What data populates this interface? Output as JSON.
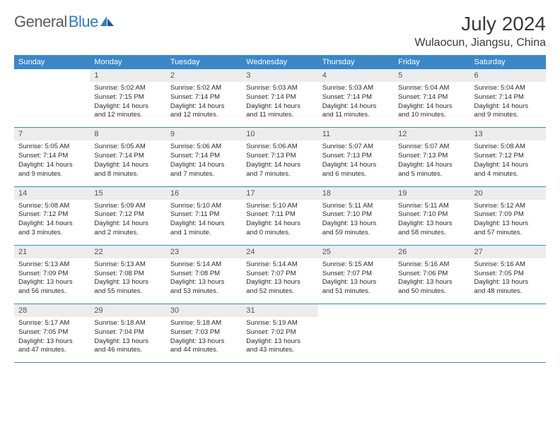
{
  "logo": {
    "part1": "General",
    "part2": "Blue"
  },
  "title": "July 2024",
  "location": "Wulaocun, Jiangsu, China",
  "colors": {
    "header_bg": "#3b87c8",
    "header_text": "#ffffff",
    "daynum_bg": "#ececec",
    "daynum_text": "#555555",
    "body_text": "#2a2a2a",
    "title_text": "#3a3a3a",
    "logo_gray": "#5a5a5a",
    "logo_blue": "#2f7bbf",
    "rule": "#3b87c8"
  },
  "weekdays": [
    "Sunday",
    "Monday",
    "Tuesday",
    "Wednesday",
    "Thursday",
    "Friday",
    "Saturday"
  ],
  "weeks": [
    [
      {
        "blank": true
      },
      {
        "n": "1",
        "sr": "Sunrise: 5:02 AM",
        "ss": "Sunset: 7:15 PM",
        "dl1": "Daylight: 14 hours",
        "dl2": "and 12 minutes."
      },
      {
        "n": "2",
        "sr": "Sunrise: 5:02 AM",
        "ss": "Sunset: 7:14 PM",
        "dl1": "Daylight: 14 hours",
        "dl2": "and 12 minutes."
      },
      {
        "n": "3",
        "sr": "Sunrise: 5:03 AM",
        "ss": "Sunset: 7:14 PM",
        "dl1": "Daylight: 14 hours",
        "dl2": "and 11 minutes."
      },
      {
        "n": "4",
        "sr": "Sunrise: 5:03 AM",
        "ss": "Sunset: 7:14 PM",
        "dl1": "Daylight: 14 hours",
        "dl2": "and 11 minutes."
      },
      {
        "n": "5",
        "sr": "Sunrise: 5:04 AM",
        "ss": "Sunset: 7:14 PM",
        "dl1": "Daylight: 14 hours",
        "dl2": "and 10 minutes."
      },
      {
        "n": "6",
        "sr": "Sunrise: 5:04 AM",
        "ss": "Sunset: 7:14 PM",
        "dl1": "Daylight: 14 hours",
        "dl2": "and 9 minutes."
      }
    ],
    [
      {
        "n": "7",
        "sr": "Sunrise: 5:05 AM",
        "ss": "Sunset: 7:14 PM",
        "dl1": "Daylight: 14 hours",
        "dl2": "and 9 minutes."
      },
      {
        "n": "8",
        "sr": "Sunrise: 5:05 AM",
        "ss": "Sunset: 7:14 PM",
        "dl1": "Daylight: 14 hours",
        "dl2": "and 8 minutes."
      },
      {
        "n": "9",
        "sr": "Sunrise: 5:06 AM",
        "ss": "Sunset: 7:14 PM",
        "dl1": "Daylight: 14 hours",
        "dl2": "and 7 minutes."
      },
      {
        "n": "10",
        "sr": "Sunrise: 5:06 AM",
        "ss": "Sunset: 7:13 PM",
        "dl1": "Daylight: 14 hours",
        "dl2": "and 7 minutes."
      },
      {
        "n": "11",
        "sr": "Sunrise: 5:07 AM",
        "ss": "Sunset: 7:13 PM",
        "dl1": "Daylight: 14 hours",
        "dl2": "and 6 minutes."
      },
      {
        "n": "12",
        "sr": "Sunrise: 5:07 AM",
        "ss": "Sunset: 7:13 PM",
        "dl1": "Daylight: 14 hours",
        "dl2": "and 5 minutes."
      },
      {
        "n": "13",
        "sr": "Sunrise: 5:08 AM",
        "ss": "Sunset: 7:12 PM",
        "dl1": "Daylight: 14 hours",
        "dl2": "and 4 minutes."
      }
    ],
    [
      {
        "n": "14",
        "sr": "Sunrise: 5:08 AM",
        "ss": "Sunset: 7:12 PM",
        "dl1": "Daylight: 14 hours",
        "dl2": "and 3 minutes."
      },
      {
        "n": "15",
        "sr": "Sunrise: 5:09 AM",
        "ss": "Sunset: 7:12 PM",
        "dl1": "Daylight: 14 hours",
        "dl2": "and 2 minutes."
      },
      {
        "n": "16",
        "sr": "Sunrise: 5:10 AM",
        "ss": "Sunset: 7:11 PM",
        "dl1": "Daylight: 14 hours",
        "dl2": "and 1 minute."
      },
      {
        "n": "17",
        "sr": "Sunrise: 5:10 AM",
        "ss": "Sunset: 7:11 PM",
        "dl1": "Daylight: 14 hours",
        "dl2": "and 0 minutes."
      },
      {
        "n": "18",
        "sr": "Sunrise: 5:11 AM",
        "ss": "Sunset: 7:10 PM",
        "dl1": "Daylight: 13 hours",
        "dl2": "and 59 minutes."
      },
      {
        "n": "19",
        "sr": "Sunrise: 5:11 AM",
        "ss": "Sunset: 7:10 PM",
        "dl1": "Daylight: 13 hours",
        "dl2": "and 58 minutes."
      },
      {
        "n": "20",
        "sr": "Sunrise: 5:12 AM",
        "ss": "Sunset: 7:09 PM",
        "dl1": "Daylight: 13 hours",
        "dl2": "and 57 minutes."
      }
    ],
    [
      {
        "n": "21",
        "sr": "Sunrise: 5:13 AM",
        "ss": "Sunset: 7:09 PM",
        "dl1": "Daylight: 13 hours",
        "dl2": "and 56 minutes."
      },
      {
        "n": "22",
        "sr": "Sunrise: 5:13 AM",
        "ss": "Sunset: 7:08 PM",
        "dl1": "Daylight: 13 hours",
        "dl2": "and 55 minutes."
      },
      {
        "n": "23",
        "sr": "Sunrise: 5:14 AM",
        "ss": "Sunset: 7:08 PM",
        "dl1": "Daylight: 13 hours",
        "dl2": "and 53 minutes."
      },
      {
        "n": "24",
        "sr": "Sunrise: 5:14 AM",
        "ss": "Sunset: 7:07 PM",
        "dl1": "Daylight: 13 hours",
        "dl2": "and 52 minutes."
      },
      {
        "n": "25",
        "sr": "Sunrise: 5:15 AM",
        "ss": "Sunset: 7:07 PM",
        "dl1": "Daylight: 13 hours",
        "dl2": "and 51 minutes."
      },
      {
        "n": "26",
        "sr": "Sunrise: 5:16 AM",
        "ss": "Sunset: 7:06 PM",
        "dl1": "Daylight: 13 hours",
        "dl2": "and 50 minutes."
      },
      {
        "n": "27",
        "sr": "Sunrise: 5:16 AM",
        "ss": "Sunset: 7:05 PM",
        "dl1": "Daylight: 13 hours",
        "dl2": "and 48 minutes."
      }
    ],
    [
      {
        "n": "28",
        "sr": "Sunrise: 5:17 AM",
        "ss": "Sunset: 7:05 PM",
        "dl1": "Daylight: 13 hours",
        "dl2": "and 47 minutes."
      },
      {
        "n": "29",
        "sr": "Sunrise: 5:18 AM",
        "ss": "Sunset: 7:04 PM",
        "dl1": "Daylight: 13 hours",
        "dl2": "and 46 minutes."
      },
      {
        "n": "30",
        "sr": "Sunrise: 5:18 AM",
        "ss": "Sunset: 7:03 PM",
        "dl1": "Daylight: 13 hours",
        "dl2": "and 44 minutes."
      },
      {
        "n": "31",
        "sr": "Sunrise: 5:19 AM",
        "ss": "Sunset: 7:02 PM",
        "dl1": "Daylight: 13 hours",
        "dl2": "and 43 minutes."
      },
      {
        "blank": true
      },
      {
        "blank": true
      },
      {
        "blank": true
      }
    ]
  ]
}
